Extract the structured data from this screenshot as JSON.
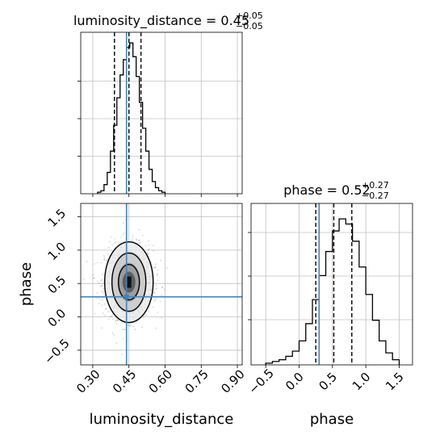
{
  "chart_data": [
    {
      "type": "histogram",
      "panel": "luminosity_distance-marginal",
      "title_prefix": "luminosity_distance = 0.45",
      "title_sup": "+0.05",
      "title_sub": "−0.05",
      "bins": [
        0.32,
        0.3333,
        0.3467,
        0.36,
        0.3733,
        0.3867,
        0.4,
        0.4133,
        0.4267,
        0.44,
        0.4533,
        0.4667,
        0.48,
        0.4933,
        0.5067,
        0.52,
        0.5333,
        0.5467,
        0.56,
        0.5733,
        0.5867,
        0.6
      ],
      "counts": [
        0.01,
        0.02,
        0.06,
        0.14,
        0.28,
        0.45,
        0.63,
        0.78,
        0.88,
        0.96,
        0.99,
        0.9,
        0.77,
        0.6,
        0.43,
        0.28,
        0.16,
        0.08,
        0.04,
        0.02,
        0.01
      ],
      "xlim": [
        0.25,
        0.92
      ],
      "ylim": [
        0,
        1.06
      ],
      "quantiles": [
        0.39,
        0.45,
        0.5
      ],
      "truth": 0.44
    },
    {
      "type": "scatter+contour",
      "panel": "luminosity_distance-vs-phase",
      "xlabel": "luminosity_distance",
      "ylabel": "phase",
      "xlim": [
        0.25,
        0.92
      ],
      "ylim": [
        -0.72,
        1.7
      ],
      "xticks": [
        "0.30",
        "0.45",
        "0.60",
        "0.75",
        "0.90"
      ],
      "yticks": [
        "−0.5",
        "0.0",
        "0.5",
        "1.0",
        "1.5"
      ],
      "center": [
        0.45,
        0.52
      ],
      "spread": [
        0.05,
        0.27
      ],
      "truth": [
        0.44,
        0.3
      ]
    },
    {
      "type": "histogram",
      "panel": "phase-marginal",
      "title_prefix": "phase = 0.52",
      "title_sup": "+0.27",
      "title_sub": "−0.27",
      "xlabel": "phase",
      "bins": [
        -0.5,
        -0.4,
        -0.3,
        -0.2,
        -0.1,
        0.0,
        0.1,
        0.2,
        0.3,
        0.4,
        0.5,
        0.6,
        0.7,
        0.8,
        0.9,
        1.0,
        1.1,
        1.2,
        1.3,
        1.4,
        1.5
      ],
      "counts": [
        0.01,
        0.02,
        0.03,
        0.05,
        0.08,
        0.14,
        0.24,
        0.38,
        0.52,
        0.66,
        0.78,
        0.85,
        0.82,
        0.72,
        0.57,
        0.41,
        0.26,
        0.14,
        0.07,
        0.03
      ],
      "xlim": [
        -0.72,
        1.7
      ],
      "ylim": [
        0,
        0.94
      ],
      "xticks": [
        "−0.5",
        "0.0",
        "0.5",
        "1.0",
        "1.5"
      ],
      "quantiles": [
        0.25,
        0.52,
        0.79
      ],
      "truth": 0.3
    }
  ]
}
